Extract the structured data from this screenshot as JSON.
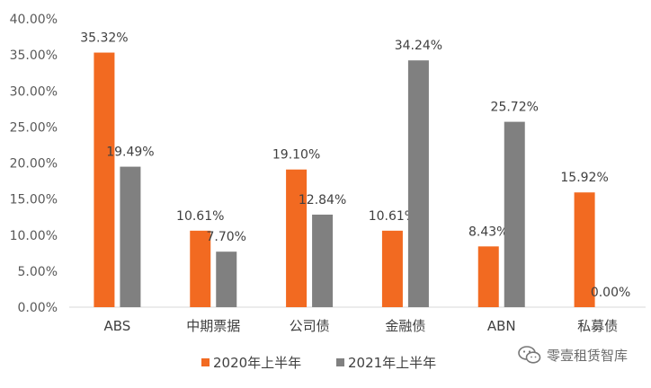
{
  "chart_data": {
    "type": "bar",
    "title": "",
    "xlabel": "",
    "ylabel": "",
    "categories": [
      "ABS",
      "中期票据",
      "公司债",
      "金融债",
      "ABN",
      "私募债"
    ],
    "series": [
      {
        "name": "2020年上半年",
        "values": [
          35.32,
          10.61,
          19.1,
          10.61,
          8.43,
          15.92
        ],
        "labels": [
          "35.32%",
          "10.61%",
          "19.10%",
          "10.61%",
          "8.43%",
          "15.92%"
        ],
        "color": "#F26A21"
      },
      {
        "name": "2021年上半年",
        "values": [
          19.49,
          7.7,
          12.84,
          34.24,
          25.72,
          0.0
        ],
        "labels": [
          "19.49%",
          "7.70%",
          "12.84%",
          "34.24%",
          "25.72%",
          "0.00%"
        ],
        "color": "#808080"
      }
    ],
    "ylim": [
      0,
      40
    ],
    "yticks": [
      0,
      5,
      10,
      15,
      20,
      25,
      30,
      35,
      40
    ],
    "ytick_labels": [
      "0.00%",
      "5.00%",
      "10.00%",
      "15.00%",
      "20.00%",
      "25.00%",
      "30.00%",
      "35.00%",
      "40.00%"
    ],
    "grid": false,
    "legend_position": "bottom"
  },
  "watermark": {
    "text": "零壹租赁智库",
    "icon": "wechat-icon",
    "color": "#6b6b6b"
  }
}
